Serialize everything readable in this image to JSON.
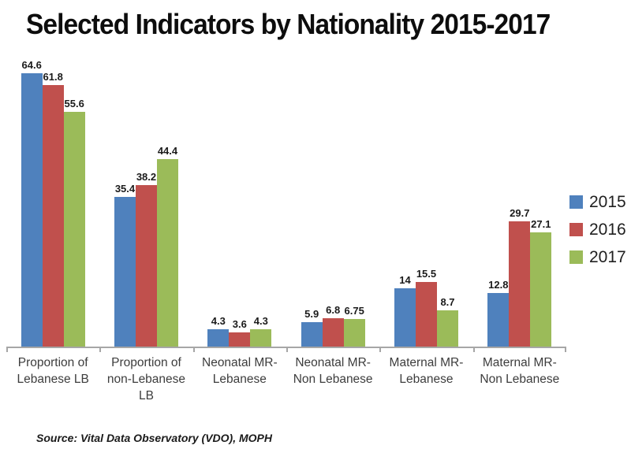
{
  "title": "Selected Indicators by Nationality 2015-2017",
  "source": "Source: Vital Data Observatory (VDO), MOPH",
  "legend": {
    "position": "right",
    "entries": [
      {
        "label": "2015",
        "color": "#4F81BD"
      },
      {
        "label": "2016",
        "color": "#C0504D"
      },
      {
        "label": "2017",
        "color": "#9BBB59"
      }
    ]
  },
  "chart_data": {
    "type": "bar",
    "title": "Selected Indicators by Nationality 2015-2017",
    "categories": [
      "Proportion of Lebanese LB",
      "Proportion of non-Lebanese LB",
      "Neonatal MR-Lebanese",
      "Neonatal MR-Non Lebanese",
      "Maternal MR-Lebanese",
      "Maternal MR-Non Lebanese"
    ],
    "series": [
      {
        "name": "2015",
        "color": "#4F81BD",
        "values": [
          64.6,
          35.4,
          4.3,
          5.9,
          14,
          12.8
        ]
      },
      {
        "name": "2016",
        "color": "#C0504D",
        "values": [
          61.8,
          38.2,
          3.6,
          6.8,
          15.5,
          29.7
        ]
      },
      {
        "name": "2017",
        "color": "#9BBB59",
        "values": [
          55.6,
          44.4,
          4.3,
          6.75,
          8.7,
          27.1
        ]
      }
    ],
    "xlabel": "",
    "ylabel": "",
    "ylim": [
      0,
      70
    ],
    "grid": false,
    "legend_position": "right",
    "data_labels": true,
    "axis_color": "#a6a6a6"
  }
}
